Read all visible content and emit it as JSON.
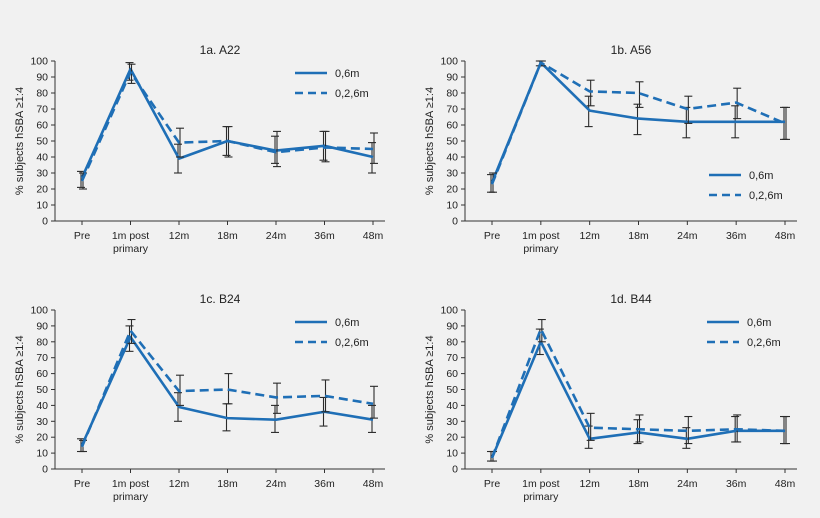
{
  "colors": {
    "series": "#1f6fb6",
    "error_bar": "#2b2b2b",
    "axis": "#333333"
  },
  "chart_data": [
    {
      "type": "line",
      "title": "1a. A22",
      "ylabel": "% subjects hSBA ≥1:4",
      "xlabel": "",
      "categories": [
        "Pre",
        "1m post\nprimary",
        "12m",
        "18m",
        "24m",
        "36m",
        "48m"
      ],
      "ylim": [
        0,
        100
      ],
      "yticks": [
        0,
        10,
        20,
        30,
        40,
        50,
        60,
        70,
        80,
        90,
        100
      ],
      "legend_position": "top-right",
      "series": [
        {
          "name": "0,6m",
          "style": "solid",
          "values": [
            27,
            95,
            39,
            50,
            44,
            47,
            40
          ],
          "err_low": [
            21,
            88,
            30,
            41,
            36,
            38,
            30
          ],
          "err_high": [
            31,
            99,
            48,
            59,
            53,
            56,
            49
          ]
        },
        {
          "name": "0,2,6m",
          "style": "dashed",
          "values": [
            25,
            93,
            49,
            50,
            43,
            46,
            45
          ],
          "err_low": [
            20,
            86,
            40,
            40,
            34,
            37,
            36
          ],
          "err_high": [
            30,
            98,
            58,
            59,
            56,
            56,
            55
          ]
        }
      ]
    },
    {
      "type": "line",
      "title": "1b. A56",
      "ylabel": "% subjects hSBA ≥1:4",
      "xlabel": "",
      "categories": [
        "Pre",
        "1m post\nprimary",
        "12m",
        "18m",
        "24m",
        "36m",
        "48m"
      ],
      "ylim": [
        0,
        100
      ],
      "yticks": [
        0,
        10,
        20,
        30,
        40,
        50,
        60,
        70,
        80,
        90,
        100
      ],
      "legend_position": "bottom-right",
      "series": [
        {
          "name": "0,6m",
          "style": "solid",
          "values": [
            24,
            99,
            69,
            64,
            62,
            62,
            62
          ],
          "err_low": [
            18,
            97,
            59,
            54,
            52,
            52,
            51
          ],
          "err_high": [
            29,
            100,
            78,
            73,
            71,
            72,
            71
          ]
        },
        {
          "name": "0,2,6m",
          "style": "dashed",
          "values": [
            23,
            99,
            81,
            80,
            70,
            74,
            61
          ],
          "err_low": [
            18,
            97,
            72,
            71,
            61,
            64,
            51
          ],
          "err_high": [
            30,
            100,
            88,
            87,
            78,
            83,
            71
          ]
        }
      ]
    },
    {
      "type": "line",
      "title": "1c. B24",
      "ylabel": "% subjects hSBA ≥1:4",
      "xlabel": "",
      "categories": [
        "Pre",
        "1m post\nprimary",
        "12m",
        "18m",
        "24m",
        "36m",
        "48m"
      ],
      "ylim": [
        0,
        100
      ],
      "yticks": [
        0,
        10,
        20,
        30,
        40,
        50,
        60,
        70,
        80,
        90,
        100
      ],
      "legend_position": "top-right",
      "series": [
        {
          "name": "0,6m",
          "style": "solid",
          "values": [
            15,
            83,
            39,
            32,
            31,
            36,
            31
          ],
          "err_low": [
            11,
            74,
            30,
            24,
            23,
            27,
            23
          ],
          "err_high": [
            19,
            90,
            48,
            41,
            40,
            45,
            40
          ]
        },
        {
          "name": "0,2,6m",
          "style": "dashed",
          "values": [
            14,
            87,
            49,
            50,
            45,
            46,
            41
          ],
          "err_low": [
            11,
            79,
            40,
            41,
            35,
            36,
            32
          ],
          "err_high": [
            18,
            94,
            59,
            60,
            54,
            56,
            52
          ]
        }
      ]
    },
    {
      "type": "line",
      "title": "1d. B44",
      "ylabel": "% subjects hSBA ≥1:4",
      "xlabel": "",
      "categories": [
        "Pre",
        "1m post\nprimary",
        "12m",
        "18m",
        "24m",
        "36m",
        "48m"
      ],
      "ylim": [
        0,
        100
      ],
      "yticks": [
        0,
        10,
        20,
        30,
        40,
        50,
        60,
        70,
        80,
        90,
        100
      ],
      "legend_position": "top-right",
      "series": [
        {
          "name": "0,6m",
          "style": "solid",
          "values": [
            7,
            80,
            19,
            23,
            19,
            24,
            24
          ],
          "err_low": [
            5,
            72,
            13,
            16,
            13,
            17,
            16
          ],
          "err_high": [
            11,
            88,
            27,
            31,
            26,
            33,
            33
          ]
        },
        {
          "name": "0,2,6m",
          "style": "dashed",
          "values": [
            7,
            88,
            26,
            25,
            24,
            25,
            24
          ],
          "err_low": [
            5,
            80,
            18,
            17,
            16,
            17,
            16
          ],
          "err_high": [
            11,
            94,
            35,
            34,
            33,
            34,
            33
          ]
        }
      ]
    }
  ]
}
